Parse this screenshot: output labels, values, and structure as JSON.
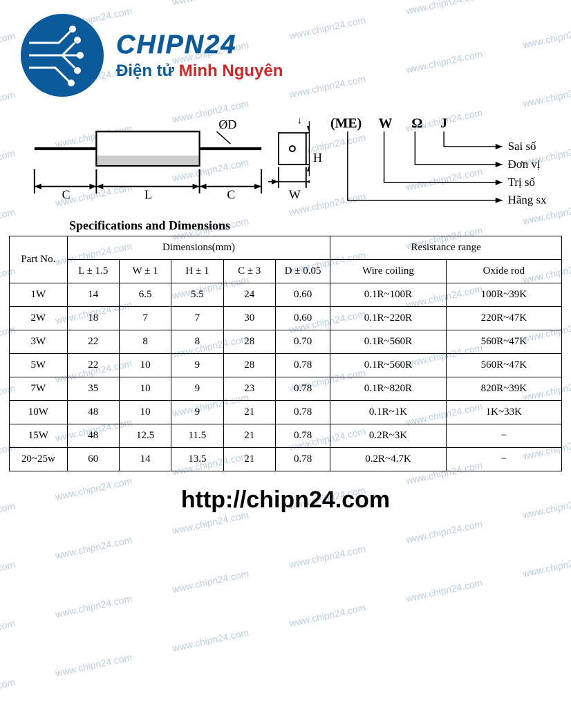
{
  "watermark_text": "www.chipn24.com",
  "watermark_color": "#3b6fb0",
  "brand": {
    "chipn24": "CHIPN24",
    "sub_prefix": "Điện tử ",
    "sub_highlight": "Minh Nguyên",
    "color_blue": "#0a5a9c",
    "color_red": "#d32626"
  },
  "diagram": {
    "labels": {
      "L": "L",
      "C": "C",
      "W": "W",
      "H": "H",
      "D": "ØD"
    },
    "legend_header": [
      "(ME)",
      "W",
      "Ω",
      "J"
    ],
    "legend_items": [
      "Sai số",
      "Đơn vị",
      "Trị số",
      "Hãng sx"
    ]
  },
  "table": {
    "title": "Specifications and Dimensions",
    "partno_header": "Part No.",
    "dim_header": "Dimensions(mm)",
    "res_header": "Resistance range",
    "dim_cols": [
      "L ± 1.5",
      "W ± 1",
      "H ± 1",
      "C ± 3",
      "D ± 0.05"
    ],
    "res_cols": [
      "Wire coiling",
      "Oxide rod"
    ],
    "col_widths": [
      "80px",
      "72px",
      "72px",
      "72px",
      "72px",
      "76px",
      "160px",
      "160px"
    ],
    "rows": [
      [
        "1W",
        "14",
        "6.5",
        "5.5",
        "24",
        "0.60",
        "0.1R~100R",
        "100R~39K"
      ],
      [
        "2W",
        "18",
        "7",
        "7",
        "30",
        "0.60",
        "0.1R~220R",
        "220R~47K"
      ],
      [
        "3W",
        "22",
        "8",
        "8",
        "28",
        "0.70",
        "0.1R~560R",
        "560R~47K"
      ],
      [
        "5W",
        "22",
        "10",
        "9",
        "28",
        "0.78",
        "0.1R~560R",
        "560R~47K"
      ],
      [
        "7W",
        "35",
        "10",
        "9",
        "23",
        "0.78",
        "0.1R~820R",
        "820R~39K"
      ],
      [
        "10W",
        "48",
        "10",
        "9",
        "21",
        "0.78",
        "0.1R~1K",
        "1K~33K"
      ],
      [
        "15W",
        "48",
        "12.5",
        "11.5",
        "21",
        "0.78",
        "0.2R~3K",
        "−"
      ],
      [
        "20~25w",
        "60",
        "14",
        "13.5",
        "21",
        "0.78",
        "0.2R~4.7K",
        "−"
      ]
    ]
  },
  "url": "http://chipn24.com"
}
